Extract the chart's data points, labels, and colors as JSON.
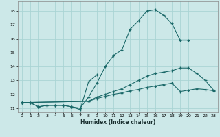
{
  "xlabel": "Humidex (Indice chaleur)",
  "bg_color": "#cce8e8",
  "grid_color": "#aad4d4",
  "line_color": "#1a6868",
  "marker": "+",
  "xlim": [
    -0.5,
    23.5
  ],
  "ylim": [
    10.7,
    18.7
  ],
  "yticks": [
    11,
    12,
    13,
    14,
    15,
    16,
    17,
    18
  ],
  "xticks": [
    0,
    1,
    2,
    3,
    4,
    5,
    6,
    7,
    8,
    9,
    10,
    11,
    12,
    13,
    14,
    15,
    16,
    17,
    18,
    19,
    20,
    21,
    22,
    23
  ],
  "curves": [
    {
      "x": [
        0,
        1,
        2,
        3,
        4,
        5,
        6,
        7,
        8,
        9,
        10,
        11,
        12,
        13,
        14,
        15,
        16,
        17,
        18,
        19,
        20
      ],
      "y": [
        11.4,
        11.4,
        11.1,
        11.2,
        11.2,
        11.2,
        11.1,
        11.0,
        11.8,
        12.8,
        14.0,
        14.8,
        15.2,
        16.7,
        17.3,
        18.0,
        18.1,
        17.7,
        17.1,
        15.9,
        15.9
      ]
    },
    {
      "x": [
        0,
        1,
        2,
        3,
        4,
        5,
        6,
        7,
        8,
        9
      ],
      "y": [
        11.4,
        11.4,
        11.1,
        11.2,
        11.2,
        11.2,
        11.1,
        10.9,
        12.9,
        13.4
      ]
    },
    {
      "x": [
        0,
        8,
        9,
        10,
        11,
        12,
        13,
        14,
        15,
        16,
        17,
        18,
        19,
        20,
        21,
        22,
        23
      ],
      "y": [
        11.4,
        11.5,
        11.8,
        12.0,
        12.2,
        12.4,
        12.7,
        13.0,
        13.3,
        13.5,
        13.6,
        13.7,
        13.9,
        13.9,
        13.5,
        13.0,
        12.3
      ]
    },
    {
      "x": [
        0,
        8,
        9,
        10,
        11,
        12,
        13,
        14,
        15,
        16,
        17,
        18,
        19,
        20,
        21,
        22,
        23
      ],
      "y": [
        11.4,
        11.5,
        11.7,
        11.85,
        12.0,
        12.1,
        12.25,
        12.35,
        12.5,
        12.6,
        12.7,
        12.8,
        12.2,
        12.3,
        12.4,
        12.35,
        12.25
      ]
    }
  ]
}
